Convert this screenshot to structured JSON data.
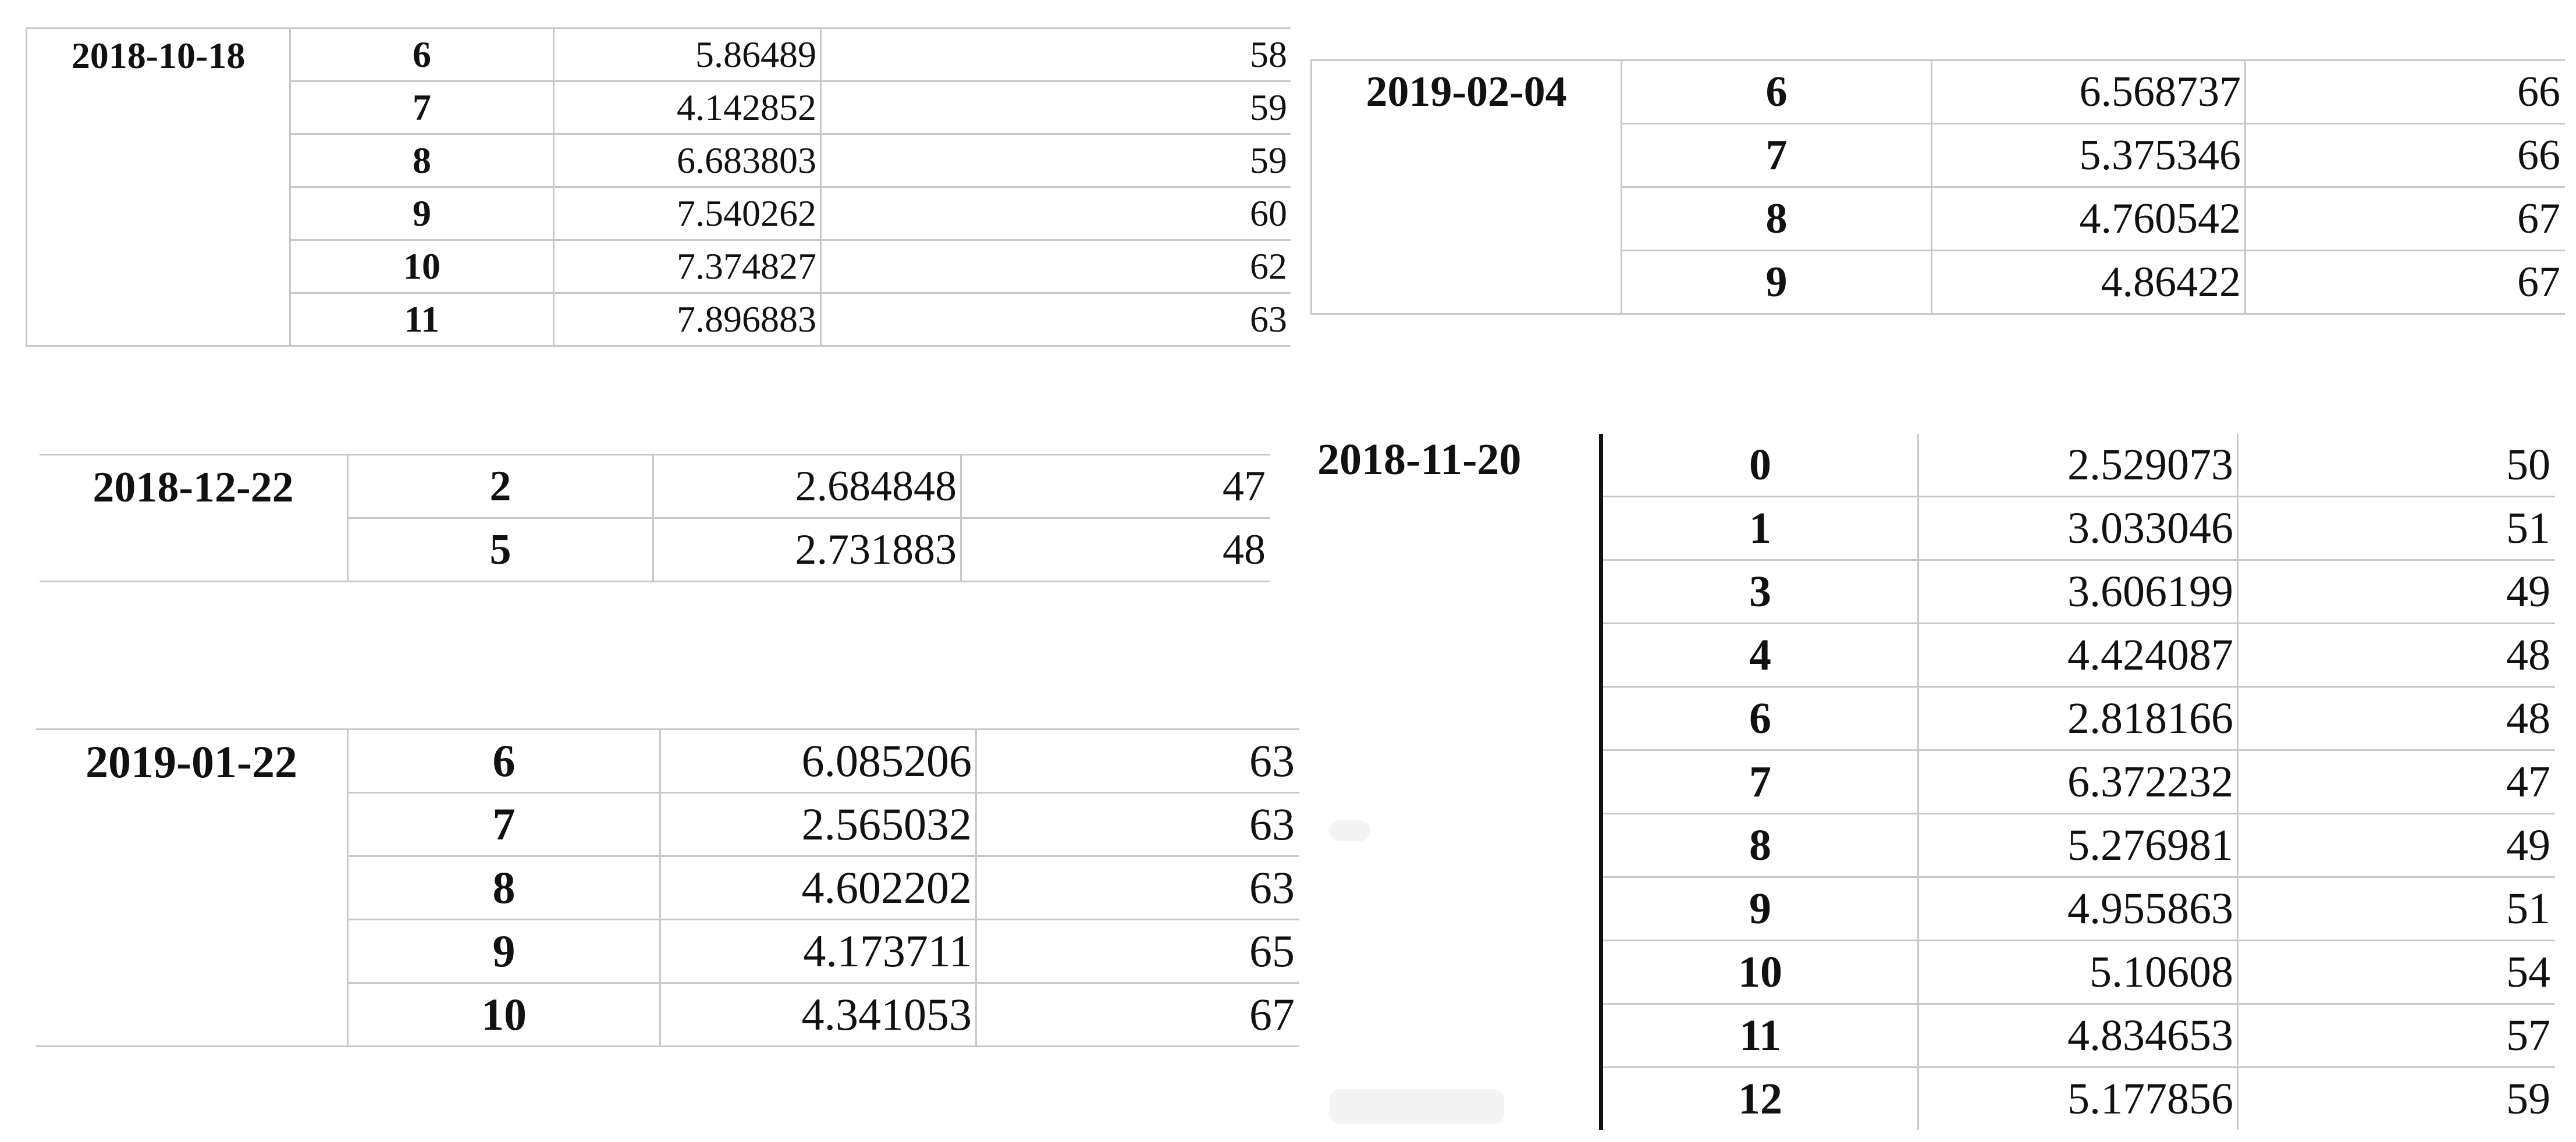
{
  "tables": [
    {
      "date": "2018-10-18",
      "rows": [
        {
          "idx": "6",
          "value": "5.86489",
          "count": "58"
        },
        {
          "idx": "7",
          "value": "4.142852",
          "count": "59"
        },
        {
          "idx": "8",
          "value": "6.683803",
          "count": "59"
        },
        {
          "idx": "9",
          "value": "7.540262",
          "count": "60"
        },
        {
          "idx": "10",
          "value": "7.374827",
          "count": "62"
        },
        {
          "idx": "11",
          "value": "7.896883",
          "count": "63"
        }
      ]
    },
    {
      "date": "2019-02-04",
      "rows": [
        {
          "idx": "6",
          "value": "6.568737",
          "count": "66"
        },
        {
          "idx": "7",
          "value": "5.375346",
          "count": "66"
        },
        {
          "idx": "8",
          "value": "4.760542",
          "count": "67"
        },
        {
          "idx": "9",
          "value": "4.86422",
          "count": "67"
        }
      ]
    },
    {
      "date": "2018-12-22",
      "rows": [
        {
          "idx": "2",
          "value": "2.684848",
          "count": "47"
        },
        {
          "idx": "5",
          "value": "2.731883",
          "count": "48"
        }
      ]
    },
    {
      "date": "2019-01-22",
      "rows": [
        {
          "idx": "6",
          "value": "6.085206",
          "count": "63"
        },
        {
          "idx": "7",
          "value": "2.565032",
          "count": "63"
        },
        {
          "idx": "8",
          "value": "4.602202",
          "count": "63"
        },
        {
          "idx": "9",
          "value": "4.173711",
          "count": "65"
        },
        {
          "idx": "10",
          "value": "4.341053",
          "count": "67"
        }
      ]
    },
    {
      "date": "2018-11-20",
      "rows": [
        {
          "idx": "0",
          "value": "2.529073",
          "count": "50"
        },
        {
          "idx": "1",
          "value": "3.033046",
          "count": "51"
        },
        {
          "idx": "3",
          "value": "3.606199",
          "count": "49"
        },
        {
          "idx": "4",
          "value": "4.424087",
          "count": "48"
        },
        {
          "idx": "6",
          "value": "2.818166",
          "count": "48"
        },
        {
          "idx": "7",
          "value": "6.372232",
          "count": "47"
        },
        {
          "idx": "8",
          "value": "5.276981",
          "count": "49"
        },
        {
          "idx": "9",
          "value": "4.955863",
          "count": "51"
        },
        {
          "idx": "10",
          "value": "5.10608",
          "count": "54"
        },
        {
          "idx": "11",
          "value": "4.834653",
          "count": "57"
        },
        {
          "idx": "12",
          "value": "5.177856",
          "count": "59"
        }
      ]
    }
  ]
}
